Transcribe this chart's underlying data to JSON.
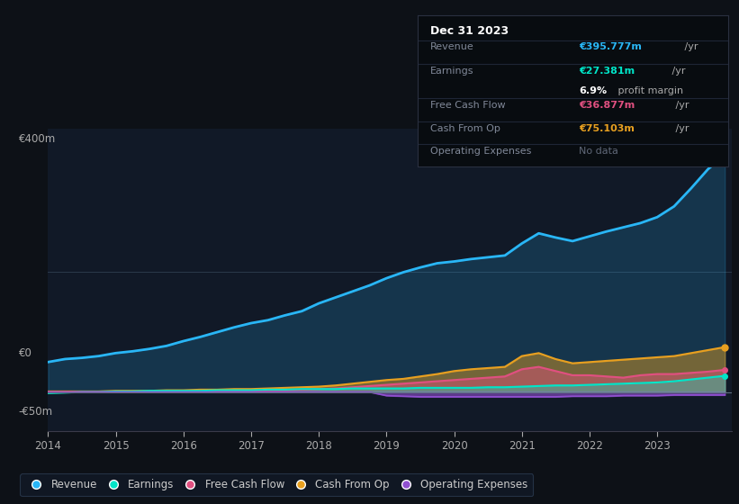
{
  "bg_color": "#0d1117",
  "plot_bg_color": "#111927",
  "years": [
    2014.0,
    2014.25,
    2014.5,
    2014.75,
    2015.0,
    2015.25,
    2015.5,
    2015.75,
    2016.0,
    2016.25,
    2016.5,
    2016.75,
    2017.0,
    2017.25,
    2017.5,
    2017.75,
    2018.0,
    2018.25,
    2018.5,
    2018.75,
    2019.0,
    2019.25,
    2019.5,
    2019.75,
    2020.0,
    2020.25,
    2020.5,
    2020.75,
    2021.0,
    2021.25,
    2021.5,
    2021.75,
    2022.0,
    2022.25,
    2022.5,
    2022.75,
    2023.0,
    2023.25,
    2023.5,
    2023.75,
    2024.0
  ],
  "revenue": [
    50,
    55,
    57,
    60,
    65,
    68,
    72,
    77,
    85,
    92,
    100,
    108,
    115,
    120,
    128,
    135,
    148,
    158,
    168,
    178,
    190,
    200,
    208,
    215,
    218,
    222,
    225,
    228,
    248,
    265,
    258,
    252,
    260,
    268,
    275,
    282,
    292,
    310,
    340,
    372,
    396
  ],
  "earnings": [
    -2,
    -1,
    0,
    0,
    1,
    1,
    2,
    2,
    2,
    2,
    3,
    3,
    3,
    4,
    4,
    5,
    5,
    5,
    6,
    6,
    6,
    6,
    7,
    7,
    7,
    7,
    8,
    8,
    9,
    10,
    11,
    11,
    12,
    13,
    14,
    15,
    16,
    18,
    21,
    24,
    27
  ],
  "free_cash_flow": [
    0,
    0,
    0,
    0,
    0,
    0,
    1,
    1,
    1,
    1,
    2,
    2,
    2,
    3,
    3,
    4,
    5,
    6,
    8,
    10,
    12,
    14,
    16,
    18,
    20,
    22,
    24,
    26,
    38,
    42,
    35,
    28,
    28,
    26,
    24,
    28,
    30,
    30,
    32,
    34,
    37
  ],
  "cash_from_op": [
    1,
    1,
    1,
    1,
    2,
    2,
    2,
    3,
    3,
    4,
    4,
    5,
    5,
    6,
    7,
    8,
    9,
    11,
    14,
    17,
    20,
    22,
    26,
    30,
    35,
    38,
    40,
    42,
    60,
    65,
    55,
    48,
    50,
    52,
    54,
    56,
    58,
    60,
    65,
    70,
    75
  ],
  "operating_expenses": [
    0,
    0,
    0,
    0,
    0,
    0,
    0,
    0,
    0,
    0,
    0,
    0,
    0,
    0,
    0,
    0,
    0,
    0,
    0,
    0,
    -6,
    -7,
    -8,
    -8,
    -8,
    -8,
    -8,
    -8,
    -8,
    -8,
    -8,
    -7,
    -7,
    -7,
    -6,
    -6,
    -6,
    -5,
    -5,
    -5,
    -5
  ],
  "revenue_color": "#29b6f6",
  "earnings_color": "#00e5c8",
  "free_cash_flow_color": "#e05080",
  "cash_from_op_color": "#e8a020",
  "operating_expenses_color": "#9050d0",
  "revenue_val": "€395.777m",
  "earnings_val": "€27.381m",
  "profit_margin": "6.9%",
  "fcf_val": "€36.877m",
  "cash_op_val": "€75.103m",
  "ylabel_400": "€400m",
  "ylabel_0": "€0",
  "ylabel_neg50": "-€50m"
}
